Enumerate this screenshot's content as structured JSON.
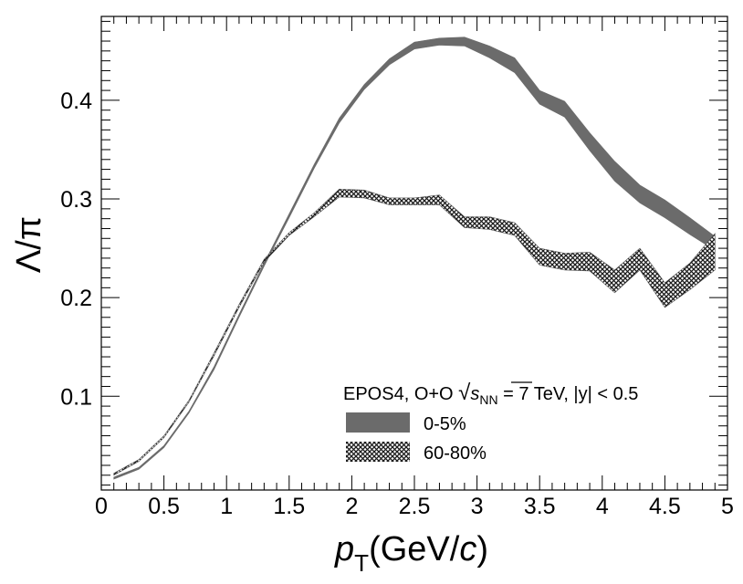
{
  "chart_data": {
    "type": "area",
    "xlabel": {
      "var": "p",
      "sub": "T",
      "units_open": "(GeV/",
      "units_var": "c",
      "units_close": ")"
    },
    "ylabel": "Λ/π",
    "xlim": [
      0,
      5
    ],
    "ylim": [
      0.005,
      0.485
    ],
    "xticks": [
      0,
      0.5,
      1,
      1.5,
      2,
      2.5,
      3,
      3.5,
      4,
      4.5,
      5
    ],
    "xtick_labels": [
      "0",
      "0.5",
      "1",
      "1.5",
      "2",
      "2.5",
      "3",
      "3.5",
      "4",
      "4.5",
      "5"
    ],
    "yticks": [
      0.1,
      0.2,
      0.3,
      0.4
    ],
    "ytick_labels": [
      "0.1",
      "0.2",
      "0.3",
      "0.4"
    ],
    "grid": false,
    "legend": {
      "placement": "bottom-right",
      "header": {
        "prefix": "EPOS4, O+O ",
        "sqrt_s": "s",
        "sqrt_sub": "NN",
        "suffix": " = 7 TeV, |y| < 0.5"
      }
    },
    "series": [
      {
        "name": "0-5%",
        "fill": "solid",
        "color": "#6b6b6b",
        "x": [
          0.1,
          0.3,
          0.5,
          0.7,
          0.9,
          1.1,
          1.3,
          1.5,
          1.7,
          1.9,
          2.1,
          2.3,
          2.5,
          2.7,
          2.9,
          3.1,
          3.3,
          3.5,
          3.7,
          3.9,
          4.1,
          4.3,
          4.5,
          4.7,
          4.9
        ],
        "low": [
          0.016,
          0.026,
          0.048,
          0.083,
          0.127,
          0.18,
          0.232,
          0.281,
          0.331,
          0.377,
          0.411,
          0.436,
          0.452,
          0.456,
          0.455,
          0.443,
          0.428,
          0.396,
          0.383,
          0.349,
          0.318,
          0.296,
          0.281,
          0.264,
          0.248
        ],
        "high": [
          0.018,
          0.028,
          0.05,
          0.085,
          0.13,
          0.183,
          0.235,
          0.285,
          0.335,
          0.382,
          0.416,
          0.442,
          0.459,
          0.463,
          0.464,
          0.455,
          0.443,
          0.41,
          0.399,
          0.367,
          0.338,
          0.314,
          0.299,
          0.281,
          0.262
        ]
      },
      {
        "name": "60-80%",
        "fill": "crosshatch",
        "color": "#555555",
        "x": [
          0.1,
          0.3,
          0.5,
          0.7,
          0.9,
          1.1,
          1.3,
          1.5,
          1.7,
          1.9,
          2.1,
          2.3,
          2.5,
          2.7,
          2.9,
          3.1,
          3.3,
          3.5,
          3.7,
          3.9,
          4.1,
          4.3,
          4.5,
          4.7,
          4.9
        ],
        "low": [
          0.02,
          0.034,
          0.058,
          0.094,
          0.141,
          0.19,
          0.236,
          0.263,
          0.282,
          0.302,
          0.301,
          0.294,
          0.294,
          0.294,
          0.271,
          0.269,
          0.263,
          0.233,
          0.228,
          0.227,
          0.205,
          0.228,
          0.19,
          0.208,
          0.228
        ],
        "high": [
          0.022,
          0.036,
          0.06,
          0.096,
          0.144,
          0.193,
          0.239,
          0.266,
          0.286,
          0.31,
          0.309,
          0.301,
          0.301,
          0.304,
          0.282,
          0.282,
          0.276,
          0.25,
          0.245,
          0.246,
          0.228,
          0.25,
          0.215,
          0.235,
          0.265
        ]
      }
    ]
  }
}
